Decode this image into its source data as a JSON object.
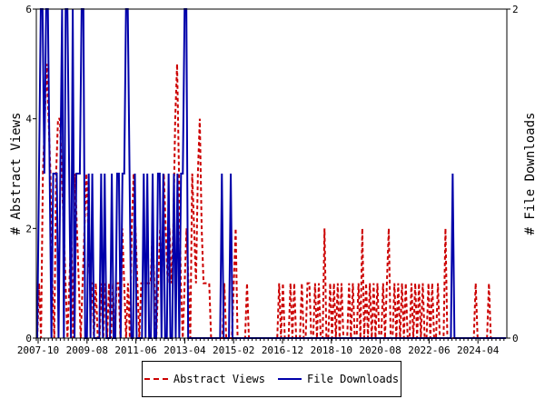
{
  "chart_data": {
    "type": "line",
    "x_tick_labels": [
      "2007-10",
      "2009-08",
      "2011-06",
      "2013-04",
      "2015-02",
      "2016-12",
      "2018-10",
      "2020-08",
      "2022-06",
      "2024-04"
    ],
    "y_left": {
      "label": "# Abstract Views",
      "min": 0,
      "max": 6,
      "ticks": [
        0,
        2,
        4,
        6
      ]
    },
    "y_right": {
      "label": "# File Downloads",
      "min": 0,
      "max": 2,
      "ticks": [
        0,
        2
      ]
    },
    "grid": false,
    "legend_placement": "bottom",
    "series": [
      {
        "name": "Abstract Views",
        "axis": "left",
        "style": "dashed",
        "color": "#cc0000",
        "values": [
          0,
          1,
          0,
          3,
          4,
          5,
          4,
          3,
          1,
          0,
          3,
          4,
          4,
          3,
          2,
          1,
          0,
          1,
          2,
          0,
          3,
          2,
          1,
          0,
          1,
          2,
          3,
          2,
          1,
          1,
          0,
          1,
          0,
          0,
          1,
          0,
          1,
          0,
          1,
          0,
          1,
          0,
          1,
          1,
          0,
          2,
          1,
          0,
          1,
          0,
          2,
          3,
          2,
          1,
          0,
          1,
          1,
          1,
          1,
          1,
          1,
          2,
          1,
          0,
          1,
          2,
          1,
          3,
          2,
          1,
          2,
          1,
          2,
          4,
          5,
          3,
          1,
          0,
          1,
          2,
          1,
          0,
          3,
          2,
          1,
          3,
          4,
          2,
          1,
          1,
          1,
          1,
          0,
          0,
          0,
          0,
          0,
          0,
          0,
          1,
          0,
          0,
          0,
          0,
          1,
          2,
          0,
          0,
          0,
          0,
          0,
          1,
          0,
          0,
          0,
          0,
          0,
          0,
          0,
          0,
          0,
          0,
          0,
          0,
          0,
          0,
          0,
          0,
          1,
          0,
          1,
          0,
          0,
          0,
          1,
          0,
          1,
          0,
          0,
          0,
          1,
          0,
          0,
          1,
          1,
          0,
          0,
          1,
          0,
          1,
          0,
          0,
          2,
          0,
          0,
          1,
          0,
          1,
          0,
          1,
          0,
          1,
          0,
          0,
          0,
          1,
          0,
          1,
          0,
          0,
          1,
          0,
          2,
          0,
          1,
          0,
          1,
          0,
          1,
          0,
          1,
          0,
          0,
          1,
          0,
          1,
          2,
          0,
          0,
          1,
          0,
          1,
          0,
          1,
          0,
          1,
          0,
          0,
          1,
          0,
          1,
          0,
          1,
          0,
          1,
          0,
          0,
          1,
          0,
          1,
          0,
          0,
          1,
          0,
          0,
          0,
          2,
          0,
          0,
          0,
          0,
          0,
          0,
          0,
          0,
          0,
          0,
          0,
          0,
          0,
          0,
          0,
          1,
          0,
          0,
          0,
          0,
          0,
          0,
          1,
          0,
          0,
          0,
          0,
          0,
          0,
          0,
          0,
          0
        ]
      },
      {
        "name": "File Downloads",
        "axis": "right",
        "style": "solid",
        "color": "#0000aa",
        "values": [
          0,
          1,
          2,
          2,
          1,
          2,
          2,
          1,
          0,
          1,
          1,
          1,
          0,
          1,
          2,
          0,
          2,
          2,
          1,
          0,
          2,
          0,
          1,
          1,
          1,
          2,
          2,
          0,
          0,
          1,
          0,
          1,
          0,
          0,
          0,
          0,
          1,
          0,
          1,
          0,
          0,
          0,
          1,
          0,
          0,
          1,
          1,
          0,
          1,
          1,
          2,
          2,
          1,
          0,
          0,
          1,
          0,
          0,
          0,
          0,
          1,
          0,
          1,
          0,
          0,
          1,
          0,
          0,
          1,
          1,
          0,
          1,
          0,
          0,
          1,
          0,
          0,
          1,
          0,
          1,
          0,
          1,
          1,
          2,
          2,
          0,
          0,
          0,
          0,
          0,
          0,
          0,
          0,
          0,
          0,
          0,
          0,
          0,
          0,
          0,
          0,
          0,
          0,
          0,
          1,
          0,
          0,
          0,
          0,
          1,
          0,
          0,
          0,
          0,
          0,
          0,
          0,
          0,
          0,
          0,
          0,
          0,
          0,
          0,
          0,
          0,
          0,
          0,
          0,
          0,
          0,
          0,
          0,
          0,
          0,
          0,
          0,
          0,
          0,
          0,
          0,
          0,
          0,
          0,
          0,
          0,
          0,
          0,
          0,
          0,
          0,
          0,
          0,
          0,
          0,
          0,
          0,
          0,
          0,
          0,
          0,
          0,
          0,
          0,
          0,
          0,
          0,
          0,
          0,
          0,
          0,
          0,
          0,
          0,
          0,
          0,
          0,
          0,
          0,
          0,
          0,
          0,
          0,
          0,
          0,
          0,
          0,
          0,
          0,
          0,
          0,
          0,
          0,
          0,
          0,
          0,
          0,
          0,
          0,
          0,
          0,
          0,
          0,
          0,
          0,
          0,
          0,
          0,
          0,
          0,
          0,
          0,
          0,
          0,
          0,
          0,
          0,
          0,
          0,
          0,
          0,
          0,
          0,
          0,
          0,
          0,
          0,
          0,
          0,
          0,
          0,
          0,
          0,
          0,
          1,
          0,
          0,
          0,
          0,
          0,
          0,
          0,
          0,
          0,
          0,
          0,
          0,
          0,
          0,
          0,
          0,
          0,
          0,
          0,
          0,
          0,
          0,
          0,
          0,
          0,
          0,
          0,
          0,
          0,
          0
        ]
      }
    ]
  }
}
